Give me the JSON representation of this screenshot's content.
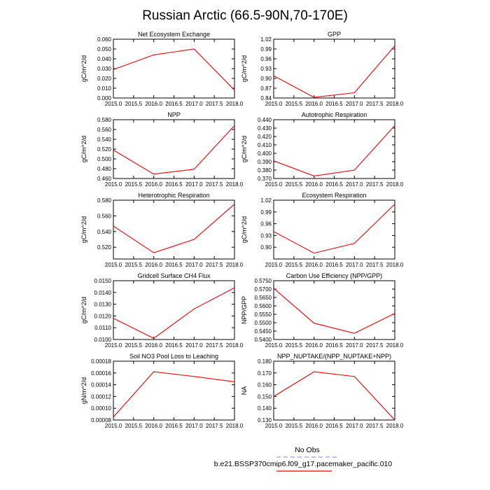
{
  "figure": {
    "title": "Russian Arctic (66.5-90N,70-170E)",
    "legend": {
      "obs_label": "No Obs",
      "obs_color": "#9999ee",
      "model_label": "b.e21.BSSP370cmip6.f09_g17.pacemaker_pacific.010",
      "model_color": "#ee0000"
    }
  },
  "chart_data": [
    {
      "type": "line",
      "title": "Net Ecosystem Exchange",
      "ylabel": "gC/m^2/d",
      "x": [
        2015,
        2016,
        2017,
        2018
      ],
      "xlim": [
        2015,
        2018
      ],
      "xticks": [
        "2015.0",
        "2015.5",
        "2016.0",
        "2016.5",
        "2017.0",
        "2017.5",
        "2018.0"
      ],
      "ylim": [
        0,
        0.06
      ],
      "yticks": [
        "0.000",
        "0.010",
        "0.020",
        "0.030",
        "0.040",
        "0.050",
        "0.060"
      ],
      "series": [
        {
          "values": [
            0.029,
            0.044,
            0.05,
            0.008
          ],
          "color": "#ee0000"
        }
      ]
    },
    {
      "type": "line",
      "title": "GPP",
      "ylabel": "gC/m^2/d",
      "x": [
        2015,
        2016,
        2017,
        2018
      ],
      "xlim": [
        2015,
        2018
      ],
      "xticks": [
        "2015.0",
        "2015.5",
        "2016.0",
        "2016.5",
        "2017.0",
        "2017.5",
        "2018.0"
      ],
      "ylim": [
        0.84,
        1.02
      ],
      "yticks": [
        "0.84",
        "0.87",
        "0.90",
        "0.93",
        "0.96",
        "0.99",
        "1.02"
      ],
      "series": [
        {
          "values": [
            0.908,
            0.842,
            0.856,
            1.0
          ],
          "color": "#ee0000"
        }
      ]
    },
    {
      "type": "line",
      "title": "NPP",
      "ylabel": "gC/m^2/d",
      "x": [
        2015,
        2016,
        2017,
        2018
      ],
      "xlim": [
        2015,
        2018
      ],
      "xticks": [
        "2015.0",
        "2015.5",
        "2016.0",
        "2016.5",
        "2017.0",
        "2017.5",
        "2018.0"
      ],
      "ylim": [
        0.46,
        0.58
      ],
      "yticks": [
        "0.460",
        "0.480",
        "0.500",
        "0.520",
        "0.540",
        "0.560",
        "0.580"
      ],
      "series": [
        {
          "values": [
            0.518,
            0.469,
            0.479,
            0.568
          ],
          "color": "#ee0000"
        }
      ]
    },
    {
      "type": "line",
      "title": "Autotrophic Respiration",
      "ylabel": "gC/m^2/d",
      "x": [
        2015,
        2016,
        2017,
        2018
      ],
      "xlim": [
        2015,
        2018
      ],
      "xticks": [
        "2015.0",
        "2015.5",
        "2016.0",
        "2016.5",
        "2017.0",
        "2017.5",
        "2018.0"
      ],
      "ylim": [
        0.37,
        0.44
      ],
      "yticks": [
        "0.370",
        "0.380",
        "0.390",
        "0.400",
        "0.410",
        "0.420",
        "0.430",
        "0.440"
      ],
      "series": [
        {
          "values": [
            0.391,
            0.373,
            0.38,
            0.433
          ],
          "color": "#ee0000"
        }
      ]
    },
    {
      "type": "line",
      "title": "Heterotrophic Respiration",
      "ylabel": "gC/m^2/d",
      "x": [
        2015,
        2016,
        2017,
        2018
      ],
      "xlim": [
        2015,
        2018
      ],
      "xticks": [
        "2015.0",
        "2015.5",
        "2016.0",
        "2016.5",
        "2017.0",
        "2017.5",
        "2018.0"
      ],
      "ylim": [
        0.505,
        0.58
      ],
      "yticks": [
        "0.520",
        "0.540",
        "0.560",
        "0.580"
      ],
      "ytick_values": [
        0.52,
        0.54,
        0.56,
        0.58
      ],
      "series": [
        {
          "values": [
            0.547,
            0.513,
            0.53,
            0.575
          ],
          "color": "#ee0000"
        }
      ]
    },
    {
      "type": "line",
      "title": "Ecosystem Respiration",
      "ylabel": "gC/m^2/d",
      "x": [
        2015,
        2016,
        2017,
        2018
      ],
      "xlim": [
        2015,
        2018
      ],
      "xticks": [
        "2015.0",
        "2015.5",
        "2016.0",
        "2016.5",
        "2017.0",
        "2017.5",
        "2018.0"
      ],
      "ylim": [
        0.87,
        1.02
      ],
      "yticks": [
        "0.90",
        "0.93",
        "0.96",
        "0.99",
        "1.02"
      ],
      "ytick_values": [
        0.9,
        0.93,
        0.96,
        0.99,
        1.02
      ],
      "series": [
        {
          "values": [
            0.94,
            0.885,
            0.91,
            1.01
          ],
          "color": "#ee0000"
        }
      ]
    },
    {
      "type": "line",
      "title": "Gridcell Surface CH4 Flux",
      "ylabel": "gC/m^2/d",
      "x": [
        2015,
        2016,
        2017,
        2018
      ],
      "xlim": [
        2015,
        2018
      ],
      "xticks": [
        "2015.0",
        "2015.5",
        "2016.0",
        "2016.5",
        "2017.0",
        "2017.5",
        "2018.0"
      ],
      "ylim": [
        0.01,
        0.015
      ],
      "yticks": [
        "0.0100",
        "0.0110",
        "0.0120",
        "0.0130",
        "0.0140",
        "0.0150"
      ],
      "series": [
        {
          "values": [
            0.0118,
            0.0101,
            0.0126,
            0.0144
          ],
          "color": "#ee0000"
        }
      ]
    },
    {
      "type": "line",
      "title": "Carbon Use Efficiency (NPP/GPP)",
      "ylabel": "NPP/GPP",
      "x": [
        2015,
        2016,
        2017,
        2018
      ],
      "xlim": [
        2015,
        2018
      ],
      "xticks": [
        "2015.0",
        "2015.5",
        "2016.0",
        "2016.5",
        "2017.0",
        "2017.5",
        "2018.0"
      ],
      "ylim": [
        0.54,
        0.575
      ],
      "yticks": [
        "0.5400",
        "0.5450",
        "0.5500",
        "0.5550",
        "0.5600",
        "0.5650",
        "0.5700",
        "0.5750"
      ],
      "series": [
        {
          "values": [
            0.5705,
            0.5497,
            0.5437,
            0.5555
          ],
          "color": "#ee0000"
        }
      ]
    },
    {
      "type": "line",
      "title": "Soil NO3 Pool Loss to Leaching",
      "ylabel": "gN/m^2/d",
      "x": [
        2015,
        2016,
        2017,
        2018
      ],
      "xlim": [
        2015,
        2018
      ],
      "xticks": [
        "2015.0",
        "2015.5",
        "2016.0",
        "2016.5",
        "2017.0",
        "2017.5",
        "2018.0"
      ],
      "ylim": [
        8e-05,
        0.00018
      ],
      "yticks": [
        "0.00008",
        "0.00010",
        "0.00012",
        "0.00014",
        "0.00016",
        "0.00018"
      ],
      "series": [
        {
          "values": [
            8.5e-05,
            0.000162,
            0.000154,
            0.000145
          ],
          "color": "#ee0000"
        }
      ]
    },
    {
      "type": "line",
      "title": "NPP_NUPTAKE/(NPP_NUPTAKE+NPP)",
      "ylabel": "NA",
      "x": [
        2015,
        2016,
        2017,
        2018
      ],
      "xlim": [
        2015,
        2018
      ],
      "xticks": [
        "2015.0",
        "2015.5",
        "2016.0",
        "2016.5",
        "2017.0",
        "2017.5",
        "2018.0"
      ],
      "ylim": [
        0.13,
        0.18
      ],
      "yticks": [
        "0.130",
        "0.140",
        "0.150",
        "0.160",
        "0.170",
        "0.180"
      ],
      "series": [
        {
          "values": [
            0.15,
            0.171,
            0.167,
            0.13
          ],
          "color": "#ee0000"
        }
      ]
    }
  ]
}
